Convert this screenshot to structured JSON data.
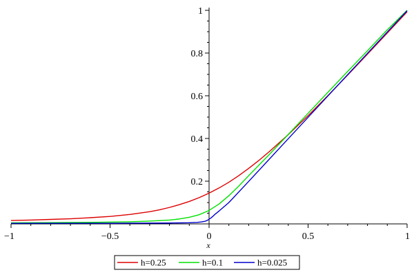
{
  "chart_data": {
    "type": "line",
    "title": "",
    "xlabel": "x",
    "ylabel": "",
    "xlim": [
      -1,
      1
    ],
    "ylim": [
      0,
      1
    ],
    "grid": false,
    "legend_position": "bottom",
    "x_ticks": [
      {
        "value": -1,
        "label": "−1"
      },
      {
        "value": -0.5,
        "label": "−0.5"
      },
      {
        "value": 0,
        "label": "0"
      },
      {
        "value": 0.5,
        "label": "0.5"
      },
      {
        "value": 1,
        "label": "1"
      }
    ],
    "y_ticks": [
      {
        "value": 0.2,
        "label": "0.2"
      },
      {
        "value": 0.4,
        "label": "0.4"
      },
      {
        "value": 0.6,
        "label": "0.6"
      },
      {
        "value": 0.8,
        "label": "0.8"
      },
      {
        "value": 1,
        "label": "1"
      }
    ],
    "series": [
      {
        "name": "h=0.25",
        "color": "#dd0000",
        "x": [
          -1,
          -0.9,
          -0.8,
          -0.7,
          -0.6,
          -0.5,
          -0.4,
          -0.3,
          -0.25,
          -0.2,
          -0.15,
          -0.1,
          -0.05,
          0,
          0.05,
          0.1,
          0.15,
          0.2,
          0.25,
          0.3,
          0.4,
          0.5,
          0.6,
          0.7,
          0.8,
          0.9,
          1
        ],
        "values": [
          0.016,
          0.018,
          0.021,
          0.024,
          0.029,
          0.035,
          0.044,
          0.057,
          0.066,
          0.077,
          0.09,
          0.105,
          0.123,
          0.144,
          0.168,
          0.195,
          0.226,
          0.26,
          0.296,
          0.335,
          0.418,
          0.507,
          0.601,
          0.697,
          0.795,
          0.894,
          0.993
        ]
      },
      {
        "name": "h=0.1",
        "color": "#00e000",
        "x": [
          -1,
          -0.8,
          -0.6,
          -0.4,
          -0.3,
          -0.2,
          -0.15,
          -0.1,
          -0.05,
          0,
          0.05,
          0.1,
          0.15,
          0.2,
          0.3,
          0.4,
          0.5,
          0.6,
          0.7,
          0.8,
          0.9,
          1
        ],
        "values": [
          0.005,
          0.006,
          0.007,
          0.01,
          0.013,
          0.018,
          0.023,
          0.031,
          0.043,
          0.063,
          0.093,
          0.132,
          0.177,
          0.226,
          0.321,
          0.419,
          0.518,
          0.616,
          0.714,
          0.811,
          0.909,
          1.0
        ]
      },
      {
        "name": "h=0.025",
        "color": "#0000cc",
        "x": [
          -1,
          -0.5,
          -0.2,
          -0.1,
          -0.06,
          -0.04,
          -0.02,
          -0.01,
          0,
          0.01,
          0.02,
          0.03,
          0.05,
          0.1,
          0.2,
          0.4,
          0.6,
          0.8,
          1
        ],
        "values": [
          0.0025,
          0.003,
          0.004,
          0.0055,
          0.007,
          0.009,
          0.0125,
          0.016,
          0.022,
          0.028,
          0.036,
          0.045,
          0.06,
          0.1,
          0.199,
          0.399,
          0.599,
          0.799,
          0.998
        ]
      }
    ]
  }
}
